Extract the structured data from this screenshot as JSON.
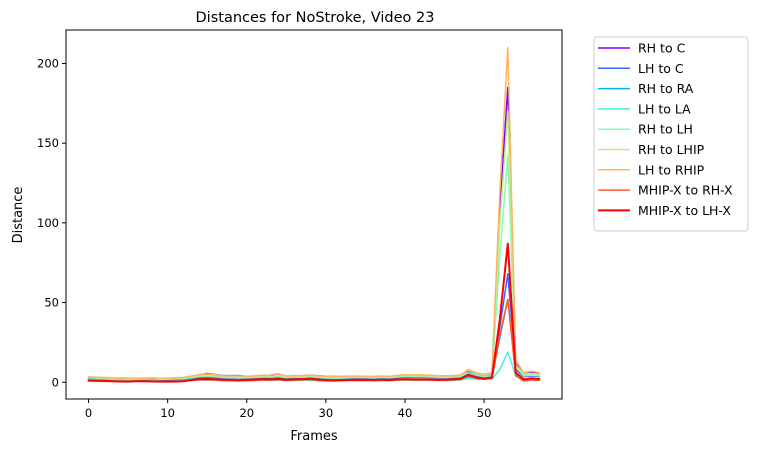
{
  "chart_data": {
    "type": "line",
    "title": "Distances for NoStroke, Video 23",
    "xlabel": "Frames",
    "ylabel": "Distance",
    "xlim": [
      -2.85,
      59.85
    ],
    "ylim": [
      -10.5,
      221.0
    ],
    "xticks": [
      0,
      10,
      20,
      30,
      40,
      50
    ],
    "yticks": [
      0,
      50,
      100,
      150,
      200
    ],
    "grid": false,
    "legend_position": "outside-right-top",
    "series": [
      {
        "name": "RH to C",
        "color": "#8000ff",
        "values": [
          2.5,
          2.4,
          2.3,
          2.0,
          2.3,
          2.4,
          2.1,
          2.2,
          2.4,
          2.0,
          2.1,
          2.3,
          2.6,
          3.4,
          4.6,
          5.5,
          4.8,
          4.2,
          4.2,
          4.2,
          3.6,
          3.8,
          4.3,
          4.5,
          5.1,
          3.8,
          4.2,
          4.0,
          4.5,
          4.1,
          3.8,
          3.6,
          3.5,
          3.8,
          3.8,
          3.6,
          3.5,
          3.6,
          3.3,
          3.8,
          4.2,
          4.0,
          4.2,
          4.1,
          3.8,
          3.6,
          3.7,
          4.0,
          6.5,
          5.0,
          4.0,
          5.0,
          110.0,
          185.0,
          12.0,
          5.0,
          6.0,
          5.5
        ]
      },
      {
        "name": "LH to C",
        "color": "#3c64ff",
        "values": [
          2.2,
          2.0,
          2.1,
          1.8,
          1.9,
          2.0,
          1.8,
          1.7,
          1.8,
          1.6,
          1.5,
          1.8,
          2.0,
          2.6,
          3.0,
          3.2,
          3.0,
          2.6,
          2.6,
          2.3,
          2.4,
          2.5,
          2.7,
          2.5,
          2.9,
          2.2,
          2.4,
          2.6,
          2.8,
          2.2,
          2.0,
          1.9,
          2.2,
          2.3,
          2.4,
          2.3,
          2.2,
          2.5,
          2.4,
          2.8,
          3.2,
          3.0,
          3.2,
          3.0,
          2.8,
          2.6,
          2.8,
          3.0,
          5.5,
          4.0,
          3.0,
          3.5,
          35.0,
          68.0,
          8.0,
          3.5,
          4.0,
          3.5
        ]
      },
      {
        "name": "RH to RA",
        "color": "#00b4eb",
        "values": [
          1.8,
          1.6,
          1.6,
          1.3,
          1.1,
          0.9,
          1.0,
          1.1,
          0.9,
          0.7,
          0.8,
          1.0,
          1.0,
          1.4,
          1.6,
          1.5,
          1.4,
          1.2,
          1.0,
          0.9,
          1.1,
          1.2,
          1.5,
          1.4,
          1.4,
          1.2,
          1.5,
          1.4,
          1.6,
          1.3,
          1.0,
          1.0,
          1.1,
          1.3,
          1.4,
          1.3,
          1.2,
          1.4,
          1.2,
          1.6,
          1.8,
          1.5,
          1.6,
          1.5,
          1.4,
          1.4,
          1.5,
          1.8,
          3.5,
          2.5,
          2.0,
          2.5,
          28.0,
          52.0,
          5.0,
          2.0,
          2.5,
          2.0
        ]
      },
      {
        "name": "LH to LA",
        "color": "#41f1d8",
        "values": [
          1.5,
          1.4,
          1.3,
          1.1,
          1.0,
          0.9,
          0.8,
          0.9,
          1.0,
          0.6,
          0.6,
          0.7,
          0.9,
          1.1,
          1.4,
          1.3,
          1.2,
          1.0,
          1.0,
          0.9,
          0.9,
          1.0,
          1.2,
          1.0,
          1.3,
          1.0,
          1.2,
          1.1,
          1.3,
          1.0,
          0.8,
          0.8,
          1.0,
          1.0,
          1.1,
          1.0,
          0.9,
          1.0,
          1.0,
          1.2,
          1.4,
          1.2,
          1.3,
          1.2,
          1.1,
          1.1,
          1.2,
          1.4,
          2.5,
          2.0,
          1.8,
          2.0,
          8.0,
          19.0,
          4.0,
          1.5,
          2.0,
          1.5
        ]
      },
      {
        "name": "RH to LH",
        "color": "#80ffb4",
        "values": [
          2.8,
          2.6,
          2.4,
          2.0,
          2.1,
          2.0,
          1.8,
          2.0,
          2.2,
          1.8,
          1.9,
          2.1,
          2.3,
          2.9,
          3.6,
          3.8,
          3.5,
          3.0,
          2.9,
          2.7,
          2.8,
          3.0,
          3.4,
          3.2,
          3.6,
          2.9,
          3.2,
          3.1,
          3.5,
          3.0,
          2.7,
          2.5,
          2.6,
          2.9,
          3.0,
          2.9,
          2.7,
          3.0,
          2.8,
          3.3,
          3.7,
          3.5,
          3.6,
          3.4,
          3.2,
          3.0,
          3.2,
          3.5,
          6.0,
          4.5,
          3.5,
          4.2,
          80.0,
          142.0,
          10.0,
          4.0,
          4.5,
          4.0
        ]
      },
      {
        "name": "RH to LHIP",
        "color": "#c0eb8d",
        "values": [
          3.2,
          3.0,
          2.8,
          2.5,
          2.6,
          2.5,
          2.3,
          2.5,
          2.7,
          2.3,
          2.4,
          2.6,
          2.9,
          3.6,
          4.4,
          4.8,
          4.3,
          3.8,
          3.8,
          3.6,
          3.5,
          3.7,
          4.1,
          4.0,
          4.6,
          3.6,
          3.9,
          3.8,
          4.2,
          3.8,
          3.5,
          3.3,
          3.3,
          3.6,
          3.6,
          3.5,
          3.3,
          3.6,
          3.4,
          4.0,
          4.5,
          4.3,
          4.4,
          4.2,
          3.9,
          3.7,
          3.9,
          4.2,
          7.5,
          5.5,
          4.5,
          5.5,
          100.0,
          170.0,
          11.0,
          5.0,
          5.5,
          5.0
        ]
      },
      {
        "name": "LH to RHIP",
        "color": "#ffb360",
        "values": [
          3.4,
          3.2,
          3.0,
          2.7,
          2.8,
          2.7,
          2.5,
          2.7,
          2.9,
          2.5,
          2.6,
          2.8,
          3.1,
          3.9,
          4.8,
          5.2,
          4.7,
          4.1,
          4.0,
          3.9,
          3.8,
          4.0,
          4.5,
          4.3,
          5.0,
          3.9,
          4.2,
          4.1,
          4.5,
          4.1,
          3.8,
          3.5,
          3.5,
          3.8,
          3.9,
          3.8,
          3.6,
          3.9,
          3.7,
          4.3,
          4.8,
          4.6,
          4.7,
          4.5,
          4.2,
          4.0,
          4.2,
          4.5,
          8.0,
          6.0,
          5.0,
          6.0,
          120.0,
          210.0,
          14.0,
          6.0,
          7.0,
          6.0
        ]
      },
      {
        "name": "MHIP-X to RH-X",
        "color": "#ff5a2e",
        "values": [
          1.2,
          1.1,
          1.0,
          0.8,
          0.7,
          0.6,
          0.7,
          0.8,
          0.7,
          0.5,
          0.6,
          0.7,
          0.8,
          1.2,
          1.6,
          1.5,
          1.4,
          1.2,
          1.1,
          1.0,
          1.1,
          1.2,
          1.5,
          1.4,
          1.6,
          1.2,
          1.4,
          1.5,
          1.7,
          1.3,
          1.0,
          0.9,
          1.0,
          1.2,
          1.3,
          1.2,
          1.1,
          1.3,
          1.1,
          1.4,
          1.6,
          1.4,
          1.5,
          1.4,
          1.3,
          1.3,
          1.4,
          1.7,
          4.0,
          2.5,
          2.0,
          2.5,
          30.0,
          52.0,
          4.0,
          0.8,
          1.5,
          1.2
        ]
      },
      {
        "name": "MHIP-X to LH-X",
        "color": "#ff0000",
        "values": [
          1.0,
          0.9,
          0.8,
          0.6,
          0.5,
          0.4,
          0.6,
          0.7,
          0.5,
          0.4,
          0.5,
          0.4,
          0.6,
          1.4,
          2.0,
          2.1,
          1.9,
          1.6,
          1.4,
          1.3,
          1.5,
          1.7,
          2.0,
          1.8,
          2.1,
          1.6,
          1.8,
          2.0,
          2.2,
          1.7,
          1.3,
          1.1,
          1.3,
          1.5,
          1.6,
          1.5,
          1.4,
          1.6,
          1.4,
          1.8,
          2.0,
          1.8,
          1.9,
          1.8,
          1.6,
          1.6,
          1.8,
          2.2,
          4.5,
          3.0,
          2.2,
          3.0,
          40.0,
          87.0,
          6.0,
          1.8,
          2.5,
          2.0
        ]
      }
    ]
  }
}
